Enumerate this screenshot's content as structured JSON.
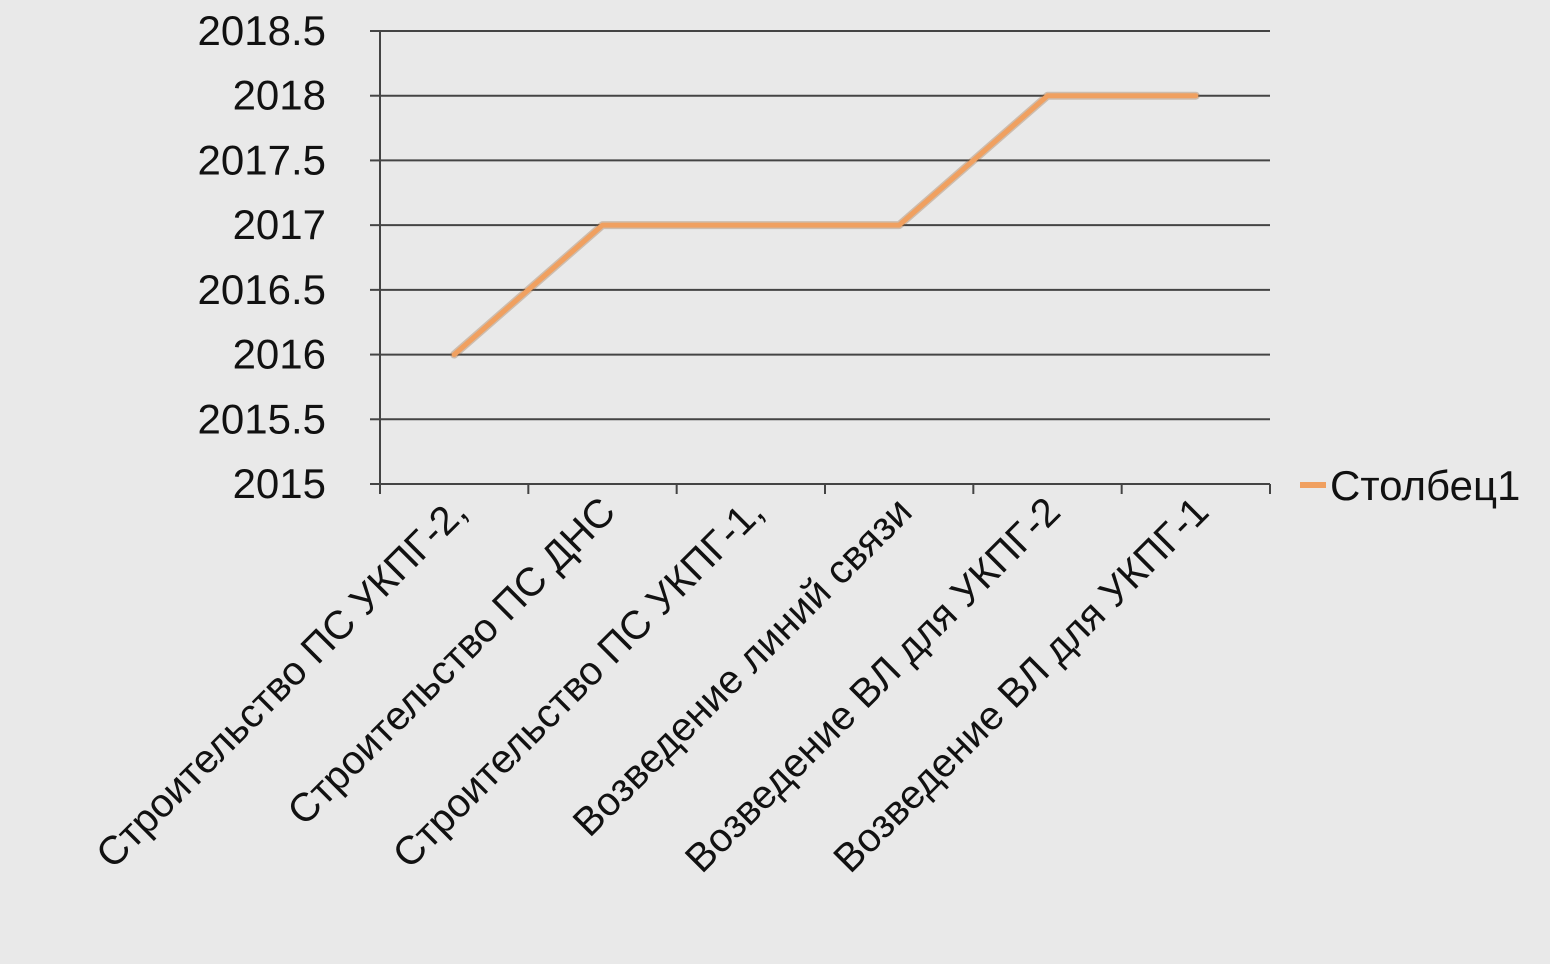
{
  "chart_data": {
    "type": "line",
    "title": "",
    "xlabel": "",
    "ylabel": "",
    "categories": [
      "Строительство ПС УКПГ-2,",
      "Строительство ПС ДНС",
      "Строительство ПС УКПГ-1,",
      "Возведение линий связи",
      "Возведение ВЛ для УКПГ-2",
      "Возведение ВЛ для УКПГ-1"
    ],
    "series": [
      {
        "name": "Столбец1",
        "values": [
          2016,
          2017,
          2017,
          2017,
          2018,
          2018
        ],
        "color": "#f0a060"
      }
    ],
    "ylim": [
      2015,
      2018.5
    ],
    "yticks": [
      "2015",
      "2015.5",
      "2016",
      "2016.5",
      "2017",
      "2017.5",
      "2018",
      "2018.5"
    ],
    "grid": true,
    "legend": "right"
  }
}
